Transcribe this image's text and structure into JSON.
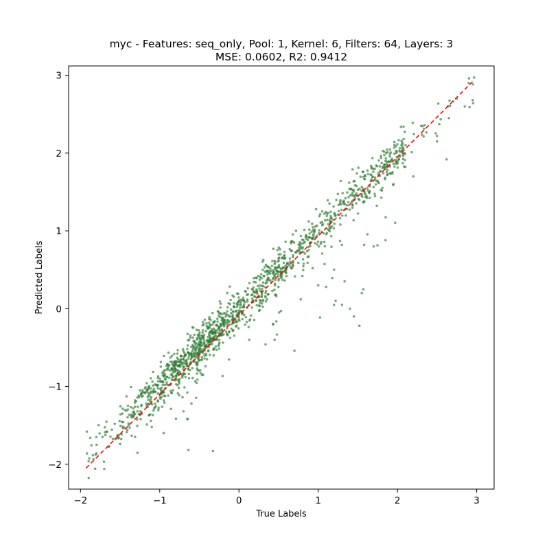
{
  "chart_data": {
    "type": "scatter",
    "title": "myc - Features: seq_only, Pool: 1, Kernel: 6, Filters: 64, Layers: 3",
    "subtitle": "MSE: 0.0602, R2: 0.9412",
    "xlabel": "True Labels",
    "ylabel": "Predicted Labels",
    "xlim": [
      -2.15,
      3.22
    ],
    "ylim": [
      -2.32,
      3.12
    ],
    "xticks": [
      -2,
      -1,
      0,
      1,
      2,
      3
    ],
    "xtick_labels": [
      "−2",
      "−1",
      "0",
      "1",
      "2",
      "3"
    ],
    "yticks": [
      -2,
      -1,
      0,
      1,
      2,
      3
    ],
    "ytick_labels": [
      "−2",
      "−1",
      "0",
      "1",
      "2",
      "3"
    ],
    "grid": false,
    "legend": "none",
    "point_color": "#2e7d32",
    "line_color": "#ff0000",
    "reference_line": {
      "style": "dashed",
      "x": [
        -1.93,
        2.95
      ],
      "y": [
        -2.05,
        2.92
      ]
    },
    "points": {
      "n": 1400,
      "seed": 7,
      "x_range": [
        -1.93,
        2.97
      ],
      "note": "noisy identity relationship, pred ≈ true"
    },
    "outliers": [
      [
        0.13,
        -0.4
      ],
      [
        0.45,
        -0.4
      ],
      [
        0.7,
        -0.54
      ],
      [
        0.53,
        -0.03
      ],
      [
        0.78,
        0.12
      ],
      [
        1.0,
        0.3
      ],
      [
        1.1,
        0.28
      ],
      [
        1.2,
        0.05
      ],
      [
        1.22,
        0.1
      ],
      [
        1.3,
        0.05
      ],
      [
        1.4,
        0.0
      ],
      [
        1.45,
        -0.1
      ],
      [
        1.55,
        0.2
      ],
      [
        1.57,
        0.25
      ],
      [
        1.52,
        -0.22
      ],
      [
        1.58,
        0.82
      ],
      [
        1.7,
        0.8
      ],
      [
        1.85,
        0.88
      ],
      [
        2.1,
        1.82
      ],
      [
        2.2,
        1.7
      ],
      [
        2.3,
        2.35
      ],
      [
        2.5,
        2.22
      ],
      [
        2.62,
        1.92
      ],
      [
        2.5,
        2.15
      ],
      [
        1.85,
        1.9
      ],
      [
        1.3,
        0.82
      ],
      [
        0.93,
        0.52
      ],
      [
        -0.65,
        -1.42
      ],
      [
        -1.1,
        -1.52
      ],
      [
        -0.95,
        -1.6
      ],
      [
        -0.6,
        -1.22
      ],
      [
        -1.5,
        -1.74
      ],
      [
        -1.25,
        -1.05
      ],
      [
        -0.7,
        -1.32
      ],
      [
        -0.2,
        -0.12
      ],
      [
        -1.7,
        -2.06
      ],
      [
        -1.8,
        -1.65
      ],
      [
        -1.92,
        -1.58
      ],
      [
        -1.4,
        -1.25
      ],
      [
        2.95,
        2.68
      ],
      [
        2.9,
        2.9
      ],
      [
        2.85,
        2.6
      ],
      [
        2.65,
        2.45
      ],
      [
        2.75,
        2.7
      ],
      [
        1.2,
        0.5
      ],
      [
        0.85,
        0.9
      ],
      [
        1.05,
        1.25
      ],
      [
        1.95,
        1.6
      ],
      [
        2.05,
        2.1
      ],
      [
        1.62,
        1.55
      ]
    ]
  }
}
